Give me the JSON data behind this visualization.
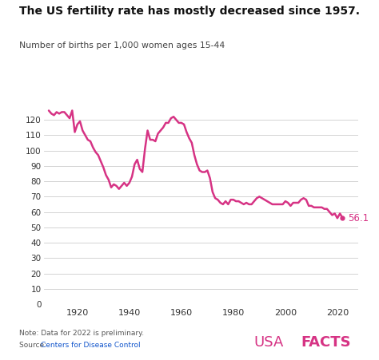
{
  "title": "The US fertility rate has mostly decreased since 1957.",
  "subtitle": "Number of births per 1,000 women ages 15-44",
  "note": "Note: Data for 2022 is preliminary.",
  "source_prefix": "Source: ",
  "source_link": "Centers for Disease Control",
  "line_color": "#d63384",
  "background_color": "#ffffff",
  "ylim": [
    0,
    130
  ],
  "yticks": [
    0,
    10,
    20,
    30,
    40,
    50,
    60,
    70,
    80,
    90,
    100,
    110,
    120
  ],
  "xticks": [
    1920,
    1940,
    1960,
    1980,
    2000,
    2020
  ],
  "end_label": "56.1",
  "data": {
    "years": [
      1909,
      1910,
      1911,
      1912,
      1913,
      1914,
      1915,
      1916,
      1917,
      1918,
      1919,
      1920,
      1921,
      1922,
      1923,
      1924,
      1925,
      1926,
      1927,
      1928,
      1929,
      1930,
      1931,
      1932,
      1933,
      1934,
      1935,
      1936,
      1937,
      1938,
      1939,
      1940,
      1941,
      1942,
      1943,
      1944,
      1945,
      1946,
      1947,
      1948,
      1949,
      1950,
      1951,
      1952,
      1953,
      1954,
      1955,
      1956,
      1957,
      1958,
      1959,
      1960,
      1961,
      1962,
      1963,
      1964,
      1965,
      1966,
      1967,
      1968,
      1969,
      1970,
      1971,
      1972,
      1973,
      1974,
      1975,
      1976,
      1977,
      1978,
      1979,
      1980,
      1981,
      1982,
      1983,
      1984,
      1985,
      1986,
      1987,
      1988,
      1989,
      1990,
      1991,
      1992,
      1993,
      1994,
      1995,
      1996,
      1997,
      1998,
      1999,
      2000,
      2001,
      2002,
      2003,
      2004,
      2005,
      2006,
      2007,
      2008,
      2009,
      2010,
      2011,
      2012,
      2013,
      2014,
      2015,
      2016,
      2017,
      2018,
      2019,
      2020,
      2021,
      2022
    ],
    "values": [
      126,
      124,
      123,
      125,
      124,
      125,
      125,
      123,
      121,
      126,
      112,
      117,
      119,
      113,
      110,
      107,
      106,
      102,
      99,
      97,
      93,
      89,
      84,
      81,
      76,
      78,
      77,
      75,
      77,
      79,
      77,
      79,
      83,
      91,
      94,
      88,
      86,
      101,
      113,
      107,
      107,
      106,
      111,
      113,
      115,
      118,
      118,
      121,
      122,
      120,
      118,
      118,
      117,
      112,
      108,
      105,
      97,
      91,
      87,
      86,
      86,
      87,
      82,
      73,
      69,
      68,
      66,
      65,
      67,
      65,
      68,
      68,
      67,
      67,
      66,
      65,
      66,
      65,
      65,
      67,
      69,
      70,
      69,
      68,
      67,
      66,
      65,
      65,
      65,
      65,
      65,
      67,
      66,
      64,
      66,
      66,
      66,
      68,
      69,
      68,
      64,
      64,
      63,
      63,
      63,
      63,
      62,
      62,
      60,
      58,
      59,
      56,
      59,
      56.1
    ]
  }
}
